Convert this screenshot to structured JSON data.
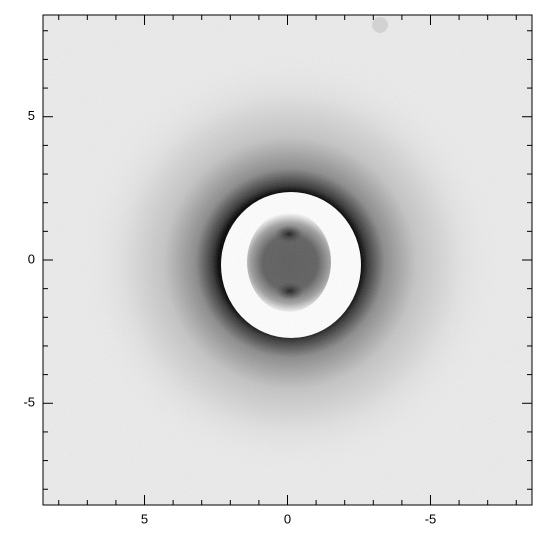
{
  "chart_data": {
    "type": "image",
    "xlim": [
      8.55,
      -8.55
    ],
    "ylim": [
      -8.55,
      8.55
    ],
    "xticks": [
      5,
      0,
      -5
    ],
    "yticks": [
      5,
      0,
      -5
    ],
    "xminorticks": [
      8,
      7,
      6,
      4,
      3,
      2,
      1,
      -1,
      -2,
      -3,
      -4,
      -6,
      -7,
      -8
    ],
    "yminorticks": [
      8,
      7,
      6,
      4,
      3,
      2,
      1,
      -1,
      -2,
      -3,
      -4,
      -6,
      -7,
      -8
    ],
    "colormap": "gray"
  }
}
